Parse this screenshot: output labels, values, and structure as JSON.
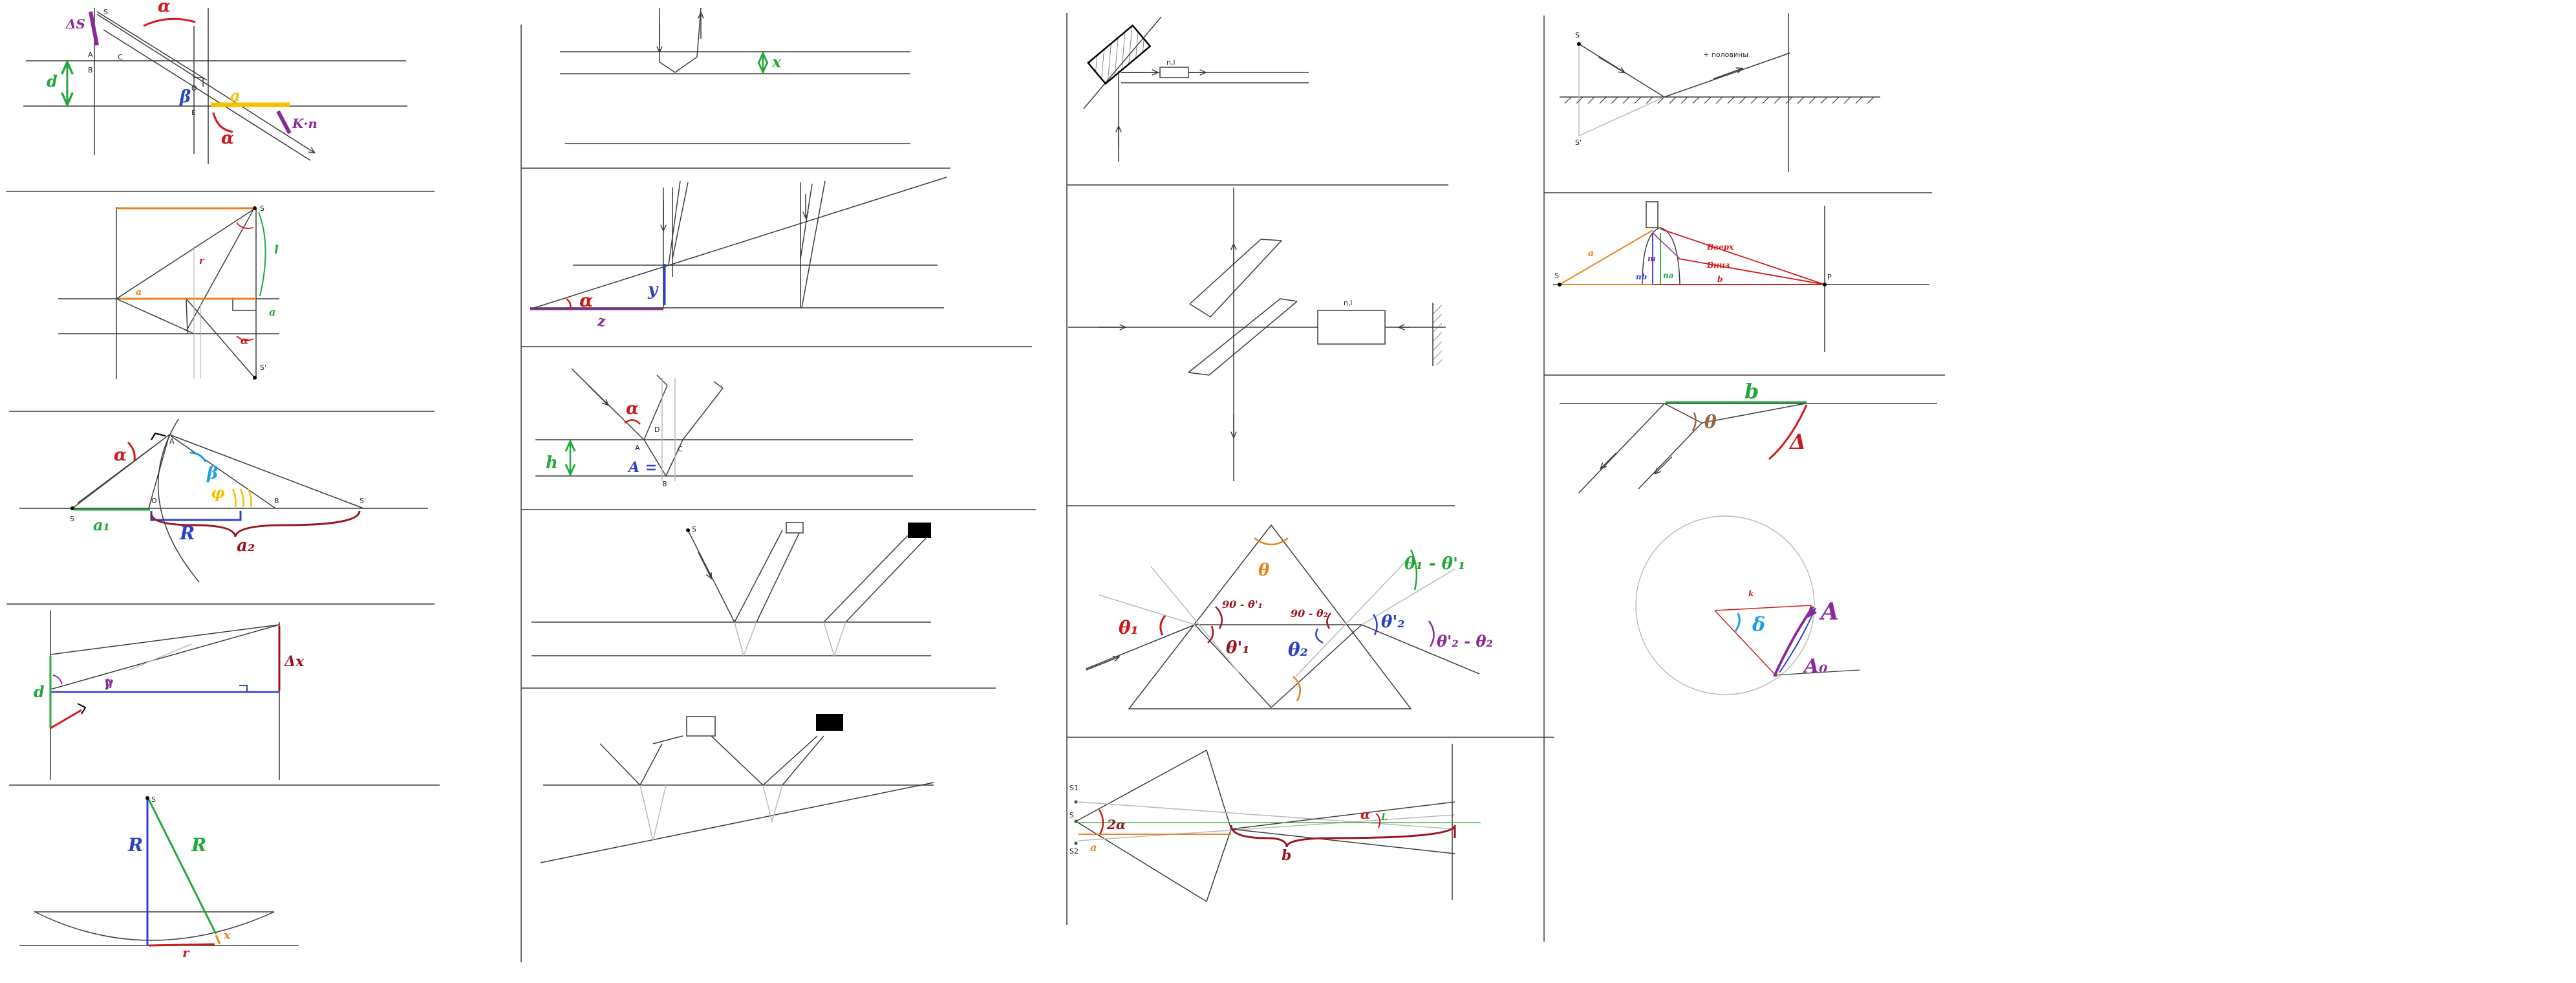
{
  "colors": {
    "line": "#3a3a3a",
    "light": "#b8b8b8",
    "red": "#d01818",
    "green": "#22a83a",
    "blue": "#2c3fc8",
    "purple": "#8a2a9a",
    "orange": "#e8821e",
    "yellow": "#f2c200",
    "brown": "#9a1520",
    "cyan": "#16a0e0",
    "black": "#000000"
  },
  "panels": [
    {
      "id": "1",
      "labels": {
        "delta_s": "ΔS",
        "s": "S",
        "alpha_top": "α",
        "d": "d",
        "a": "A",
        "c": "C",
        "b": "B",
        "beta": "β",
        "o": "O",
        "e": "E",
        "a_yellow": "a",
        "x_purple": "K·n",
        "alpha_bottom": "α"
      }
    },
    {
      "id": "2",
      "labels": {
        "s": "S",
        "s_prime": "S'",
        "l": "l",
        "a": "a",
        "alpha": "α",
        "small_a": "a",
        "small_r": "r"
      }
    },
    {
      "id": "3",
      "labels": {
        "alpha": "α",
        "a_point": "A",
        "beta": "β",
        "phi": "φ",
        "s": "S",
        "o": "O",
        "b": "B",
        "s_prime": "S'",
        "a1": "a₁",
        "r": "R",
        "a2": "a₂"
      }
    },
    {
      "id": "4",
      "labels": {
        "d": "d",
        "gamma": "γ",
        "delta_x": "Δx"
      }
    },
    {
      "id": "5",
      "labels": {
        "s": "S",
        "r_left": "R",
        "r_right": "R",
        "r_bottom": "r",
        "x": "x"
      }
    },
    {
      "id": "6",
      "labels": {
        "x": "x"
      }
    },
    {
      "id": "7",
      "labels": {
        "alpha": "α",
        "y": "y",
        "z": "z"
      }
    },
    {
      "id": "8",
      "labels": {
        "alpha": "α",
        "h": "h",
        "a_blue": "A",
        "a": "A",
        "c": "C",
        "b": "B",
        "d": "D"
      }
    },
    {
      "id": "9",
      "labels": {
        "s": "S"
      }
    },
    {
      "id": "11",
      "labels": {
        "n1": "n,l"
      }
    },
    {
      "id": "12",
      "labels": {
        "n1": "n,l"
      }
    },
    {
      "id": "13",
      "labels": {
        "theta": "θ",
        "theta_diff_1": "θ₁ - θ'₁",
        "theta1": "θ₁",
        "theta1_prime": "θ'₁",
        "ninety_minus_1": "90 - θ'₁",
        "ninety_minus_2": "90 - θ₂",
        "theta2": "θ₂",
        "theta2_prime": "θ'₂",
        "theta_diff_2": "θ'₂ - θ₂"
      }
    },
    {
      "id": "14",
      "labels": {
        "s1": "S1",
        "s": "S",
        "s2": "S2",
        "two_alpha": "2α",
        "a": "a",
        "alpha": "α",
        "b": "b",
        "l": "L"
      }
    },
    {
      "id": "15",
      "labels": {
        "s": "S",
        "s_prime": "S'",
        "mirror_text": "+ половины"
      }
    },
    {
      "id": "16",
      "labels": {
        "s": "S",
        "p": "P",
        "a": "a",
        "m": "m",
        "nb": "nb",
        "na": "na",
        "b": "b",
        "upper": "Вверх",
        "lower": "Вниз"
      }
    },
    {
      "id": "17",
      "labels": {
        "b": "b",
        "theta": "θ",
        "delta": "Δ"
      }
    },
    {
      "id": "18",
      "labels": {
        "k": "k",
        "delta": "δ",
        "a": "A",
        "a0": "A₀"
      }
    }
  ]
}
